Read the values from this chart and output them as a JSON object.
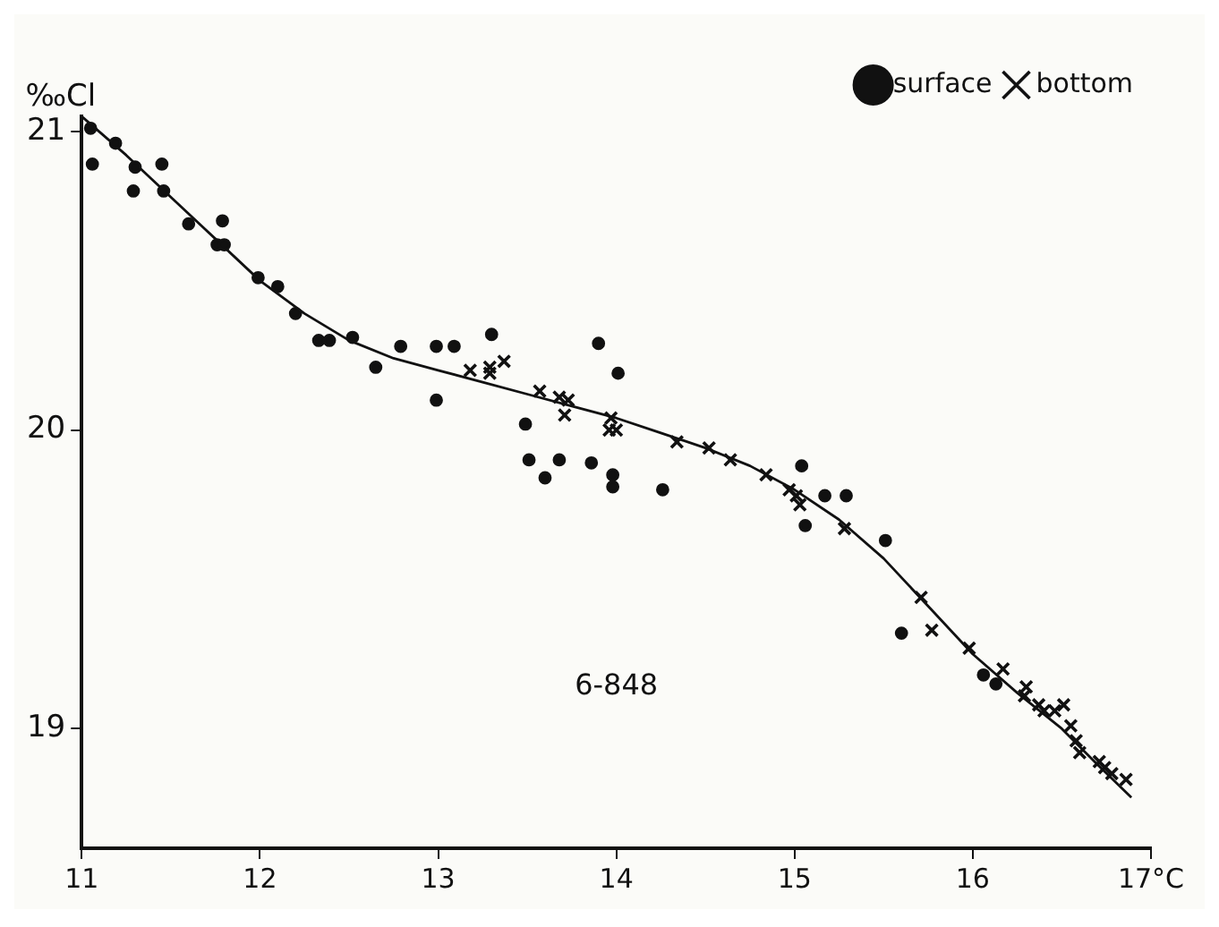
{
  "chart_data": {
    "type": "scatter",
    "ylabel": "‰Cl",
    "xlim": [
      11,
      17
    ],
    "ylim": [
      18.6,
      21.05
    ],
    "xticks": [
      11,
      12,
      13,
      14,
      15,
      16,
      {
        "value": 17,
        "label": "17°C"
      }
    ],
    "yticks": [
      19,
      20,
      21
    ],
    "grid": false,
    "legend": "top right",
    "annotations": [
      "6-848"
    ],
    "series": [
      {
        "name": "surface",
        "marker": "circle",
        "color": "#111111",
        "x": [
          11.05,
          11.06,
          11.19,
          11.3,
          11.29,
          11.45,
          11.46,
          11.6,
          11.79,
          11.76,
          11.8,
          11.99,
          12.1,
          12.2,
          12.33,
          12.39,
          12.52,
          12.65,
          12.79,
          12.99,
          13.09,
          12.99,
          13.3,
          13.9,
          14.01,
          13.49,
          13.51,
          13.68,
          13.6,
          13.86,
          13.98,
          13.98,
          14.26,
          15.04,
          15.17,
          15.29,
          15.06,
          15.51,
          15.6,
          16.06,
          16.13
        ],
        "values": [
          21.01,
          20.89,
          20.96,
          20.88,
          20.8,
          20.89,
          20.8,
          20.69,
          20.7,
          20.62,
          20.62,
          20.51,
          20.48,
          20.39,
          20.3,
          20.3,
          20.31,
          20.21,
          20.28,
          20.28,
          20.28,
          20.1,
          20.32,
          20.29,
          20.19,
          20.02,
          19.9,
          19.9,
          19.84,
          19.89,
          19.85,
          19.81,
          19.8,
          19.88,
          19.78,
          19.78,
          19.68,
          19.63,
          19.32,
          19.18,
          19.15
        ]
      },
      {
        "name": "bottom",
        "marker": "cross",
        "color": "#111111",
        "x": [
          13.18,
          13.29,
          13.37,
          13.29,
          13.57,
          13.68,
          13.73,
          13.71,
          13.97,
          13.96,
          14.0,
          14.34,
          14.52,
          14.64,
          14.84,
          14.97,
          15.01,
          15.03,
          15.28,
          15.71,
          15.77,
          15.98,
          16.17,
          16.3,
          16.29,
          16.37,
          16.4,
          16.46,
          16.51,
          16.55,
          16.58,
          16.6,
          16.71,
          16.74,
          16.78,
          16.86
        ],
        "values": [
          20.2,
          20.21,
          20.23,
          20.19,
          20.13,
          20.11,
          20.1,
          20.05,
          20.04,
          20.0,
          20.0,
          19.96,
          19.94,
          19.9,
          19.85,
          19.8,
          19.78,
          19.75,
          19.67,
          19.44,
          19.33,
          19.27,
          19.2,
          19.14,
          19.11,
          19.08,
          19.06,
          19.06,
          19.08,
          19.01,
          18.96,
          18.92,
          18.89,
          18.87,
          18.85,
          18.83
        ]
      },
      {
        "type": "line",
        "marker": "none",
        "color": "#111111",
        "x": [
          11.0,
          11.25,
          11.5,
          11.75,
          12.0,
          12.25,
          12.5,
          12.75,
          13.0,
          13.25,
          13.5,
          13.75,
          14.0,
          14.25,
          14.5,
          14.75,
          15.0,
          15.25,
          15.5,
          15.75,
          16.0,
          16.25,
          16.5,
          16.7,
          16.89
        ],
        "values": [
          21.05,
          20.92,
          20.78,
          20.64,
          20.5,
          20.39,
          20.3,
          20.24,
          20.2,
          20.16,
          20.12,
          20.08,
          20.04,
          19.99,
          19.94,
          19.88,
          19.8,
          19.7,
          19.57,
          19.41,
          19.25,
          19.12,
          19.0,
          18.88,
          18.77
        ]
      }
    ]
  }
}
